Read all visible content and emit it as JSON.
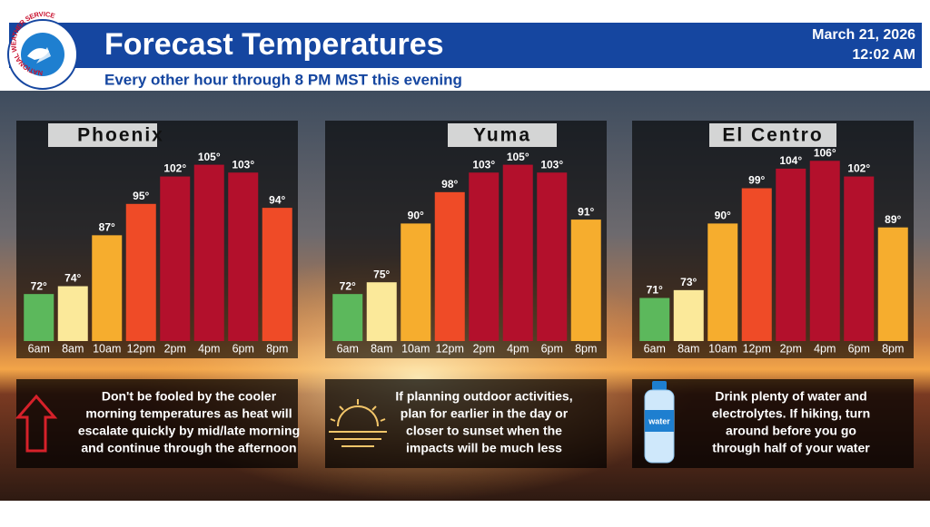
{
  "header": {
    "agency": "NATIONAL WEATHER SERVICE",
    "title": "Forecast Temperatures",
    "subtitle": "Every other hour through 8 PM MST this evening",
    "date": "March 21, 2026",
    "time": "12:02 AM"
  },
  "chart_data": [
    {
      "type": "bar",
      "title": "Phoenix",
      "categories": [
        "6am",
        "8am",
        "10am",
        "12pm",
        "2pm",
        "4pm",
        "6pm",
        "8pm"
      ],
      "values": [
        72,
        74,
        87,
        95,
        102,
        105,
        103,
        94
      ],
      "value_labels": [
        "72°",
        "74°",
        "87°",
        "95°",
        "102°",
        "105°",
        "103°",
        "94°"
      ],
      "colors": [
        "#5cb85c",
        "#fbe99a",
        "#f6ad2e",
        "#ef4b27",
        "#b3102c",
        "#b3102c",
        "#b3102c",
        "#ef4b27"
      ],
      "ylim": [
        60,
        110
      ]
    },
    {
      "type": "bar",
      "title": "Yuma",
      "categories": [
        "6am",
        "8am",
        "10am",
        "12pm",
        "2pm",
        "4pm",
        "6pm",
        "8pm"
      ],
      "values": [
        72,
        75,
        90,
        98,
        103,
        105,
        103,
        91
      ],
      "value_labels": [
        "72°",
        "75°",
        "90°",
        "98°",
        "103°",
        "105°",
        "103°",
        "91°"
      ],
      "colors": [
        "#5cb85c",
        "#fbe99a",
        "#f6ad2e",
        "#ef4b27",
        "#b3102c",
        "#b3102c",
        "#b3102c",
        "#f6ad2e"
      ],
      "ylim": [
        60,
        110
      ]
    },
    {
      "type": "bar",
      "title": "El Centro",
      "categories": [
        "6am",
        "8am",
        "10am",
        "12pm",
        "2pm",
        "4pm",
        "6pm",
        "8pm"
      ],
      "values": [
        71,
        73,
        90,
        99,
        104,
        106,
        102,
        89
      ],
      "value_labels": [
        "71°",
        "73°",
        "90°",
        "99°",
        "104°",
        "106°",
        "102°",
        "89°"
      ],
      "colors": [
        "#5cb85c",
        "#fbe99a",
        "#f6ad2e",
        "#ef4b27",
        "#b3102c",
        "#b3102c",
        "#b3102c",
        "#f6ad2e"
      ],
      "ylim": [
        60,
        110
      ]
    }
  ],
  "tips": [
    {
      "lines": [
        "Don't be fooled by the cooler",
        "morning temperatures as heat will",
        "escalate quickly by mid/late morning",
        "and continue through the afternoon"
      ]
    },
    {
      "lines": [
        "If planning outdoor activities,",
        "plan for earlier in the day or",
        "closer to sunset when the",
        "impacts will be much less"
      ]
    },
    {
      "icon_label": "water",
      "lines": [
        "Drink plenty of water and",
        "electrolytes. If hiking, turn",
        "around before you go",
        "through half of your water"
      ]
    }
  ]
}
